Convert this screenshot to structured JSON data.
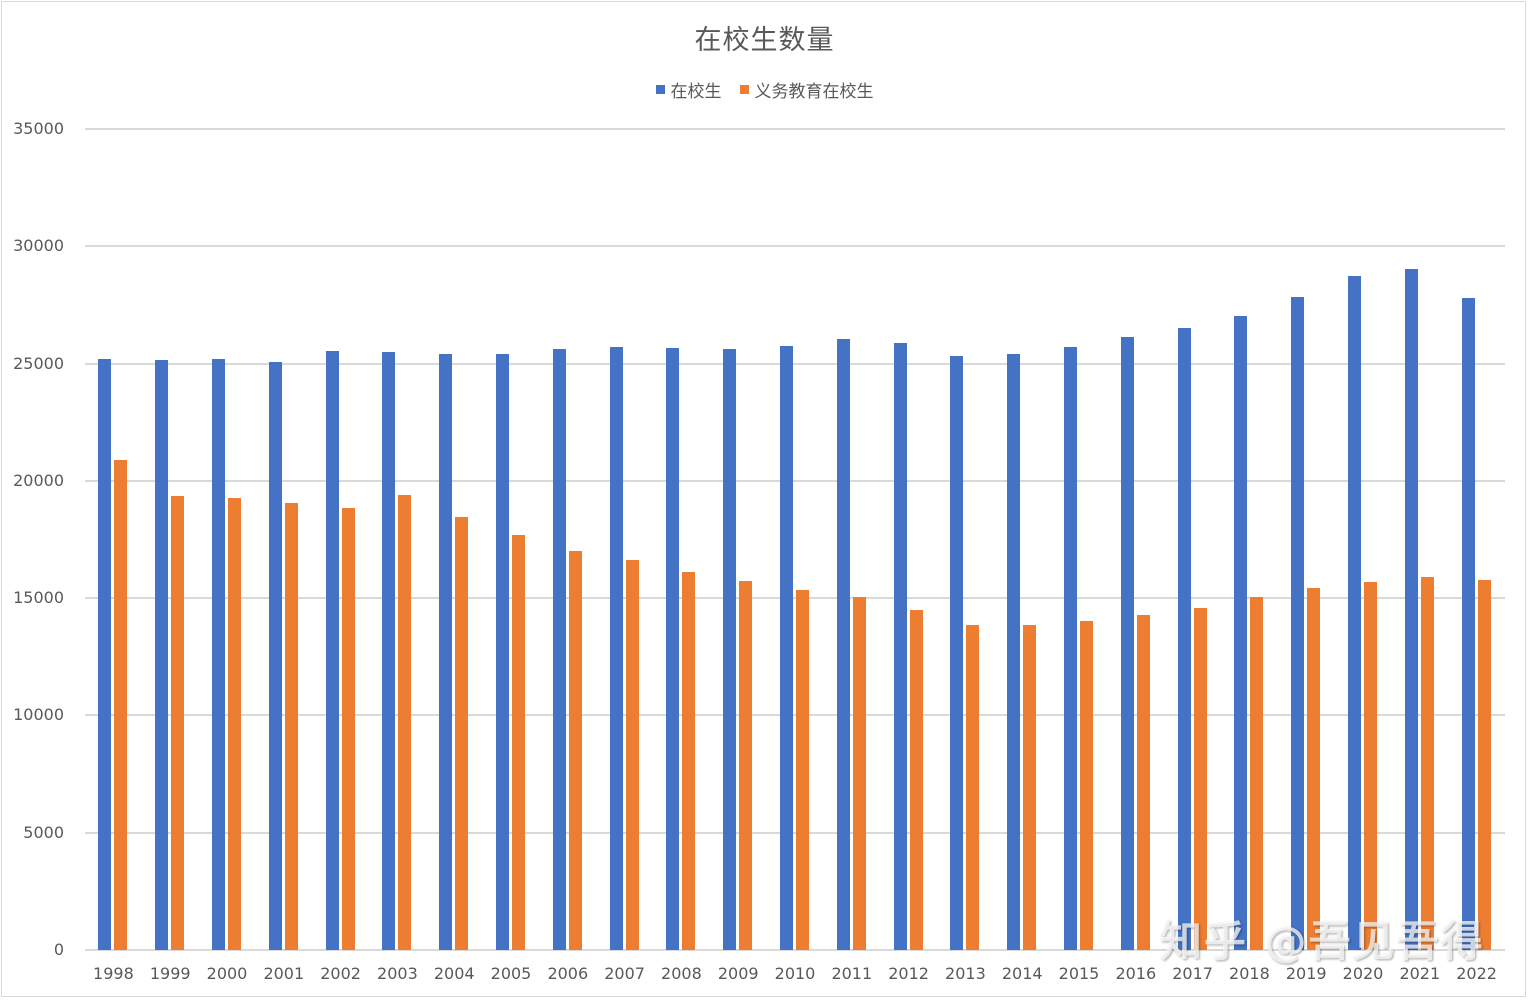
{
  "chart_data": {
    "type": "bar",
    "title": "在校生数量",
    "xlabel": "",
    "ylabel": "",
    "ylim": [
      0,
      35000
    ],
    "yticks": [
      0,
      5000,
      10000,
      15000,
      20000,
      25000,
      30000,
      35000
    ],
    "grid": true,
    "legend_position": "top",
    "categories": [
      "1998",
      "1999",
      "2000",
      "2001",
      "2002",
      "2003",
      "2004",
      "2005",
      "2006",
      "2007",
      "2008",
      "2009",
      "2010",
      "2011",
      "2012",
      "2013",
      "2014",
      "2015",
      "2016",
      "2017",
      "2018",
      "2019",
      "2020",
      "2021",
      "2022"
    ],
    "series": [
      {
        "name": "在校生",
        "color": "#4472c4",
        "values": [
          25200,
          25150,
          25200,
          25080,
          25530,
          25490,
          25410,
          25410,
          25620,
          25700,
          25660,
          25620,
          25750,
          26040,
          25870,
          25320,
          25410,
          25700,
          26130,
          26510,
          27020,
          27830,
          28730,
          29030,
          27790
        ]
      },
      {
        "name": "义务教育在校生",
        "color": "#ed7d31",
        "values": [
          20890,
          19350,
          19270,
          19050,
          18840,
          19400,
          18460,
          17690,
          17010,
          16620,
          16110,
          15730,
          15350,
          15050,
          14490,
          13850,
          13850,
          14020,
          14280,
          14580,
          15050,
          15430,
          15690,
          15900,
          15770
        ]
      }
    ]
  },
  "watermark": "知乎 @吾见吾得"
}
